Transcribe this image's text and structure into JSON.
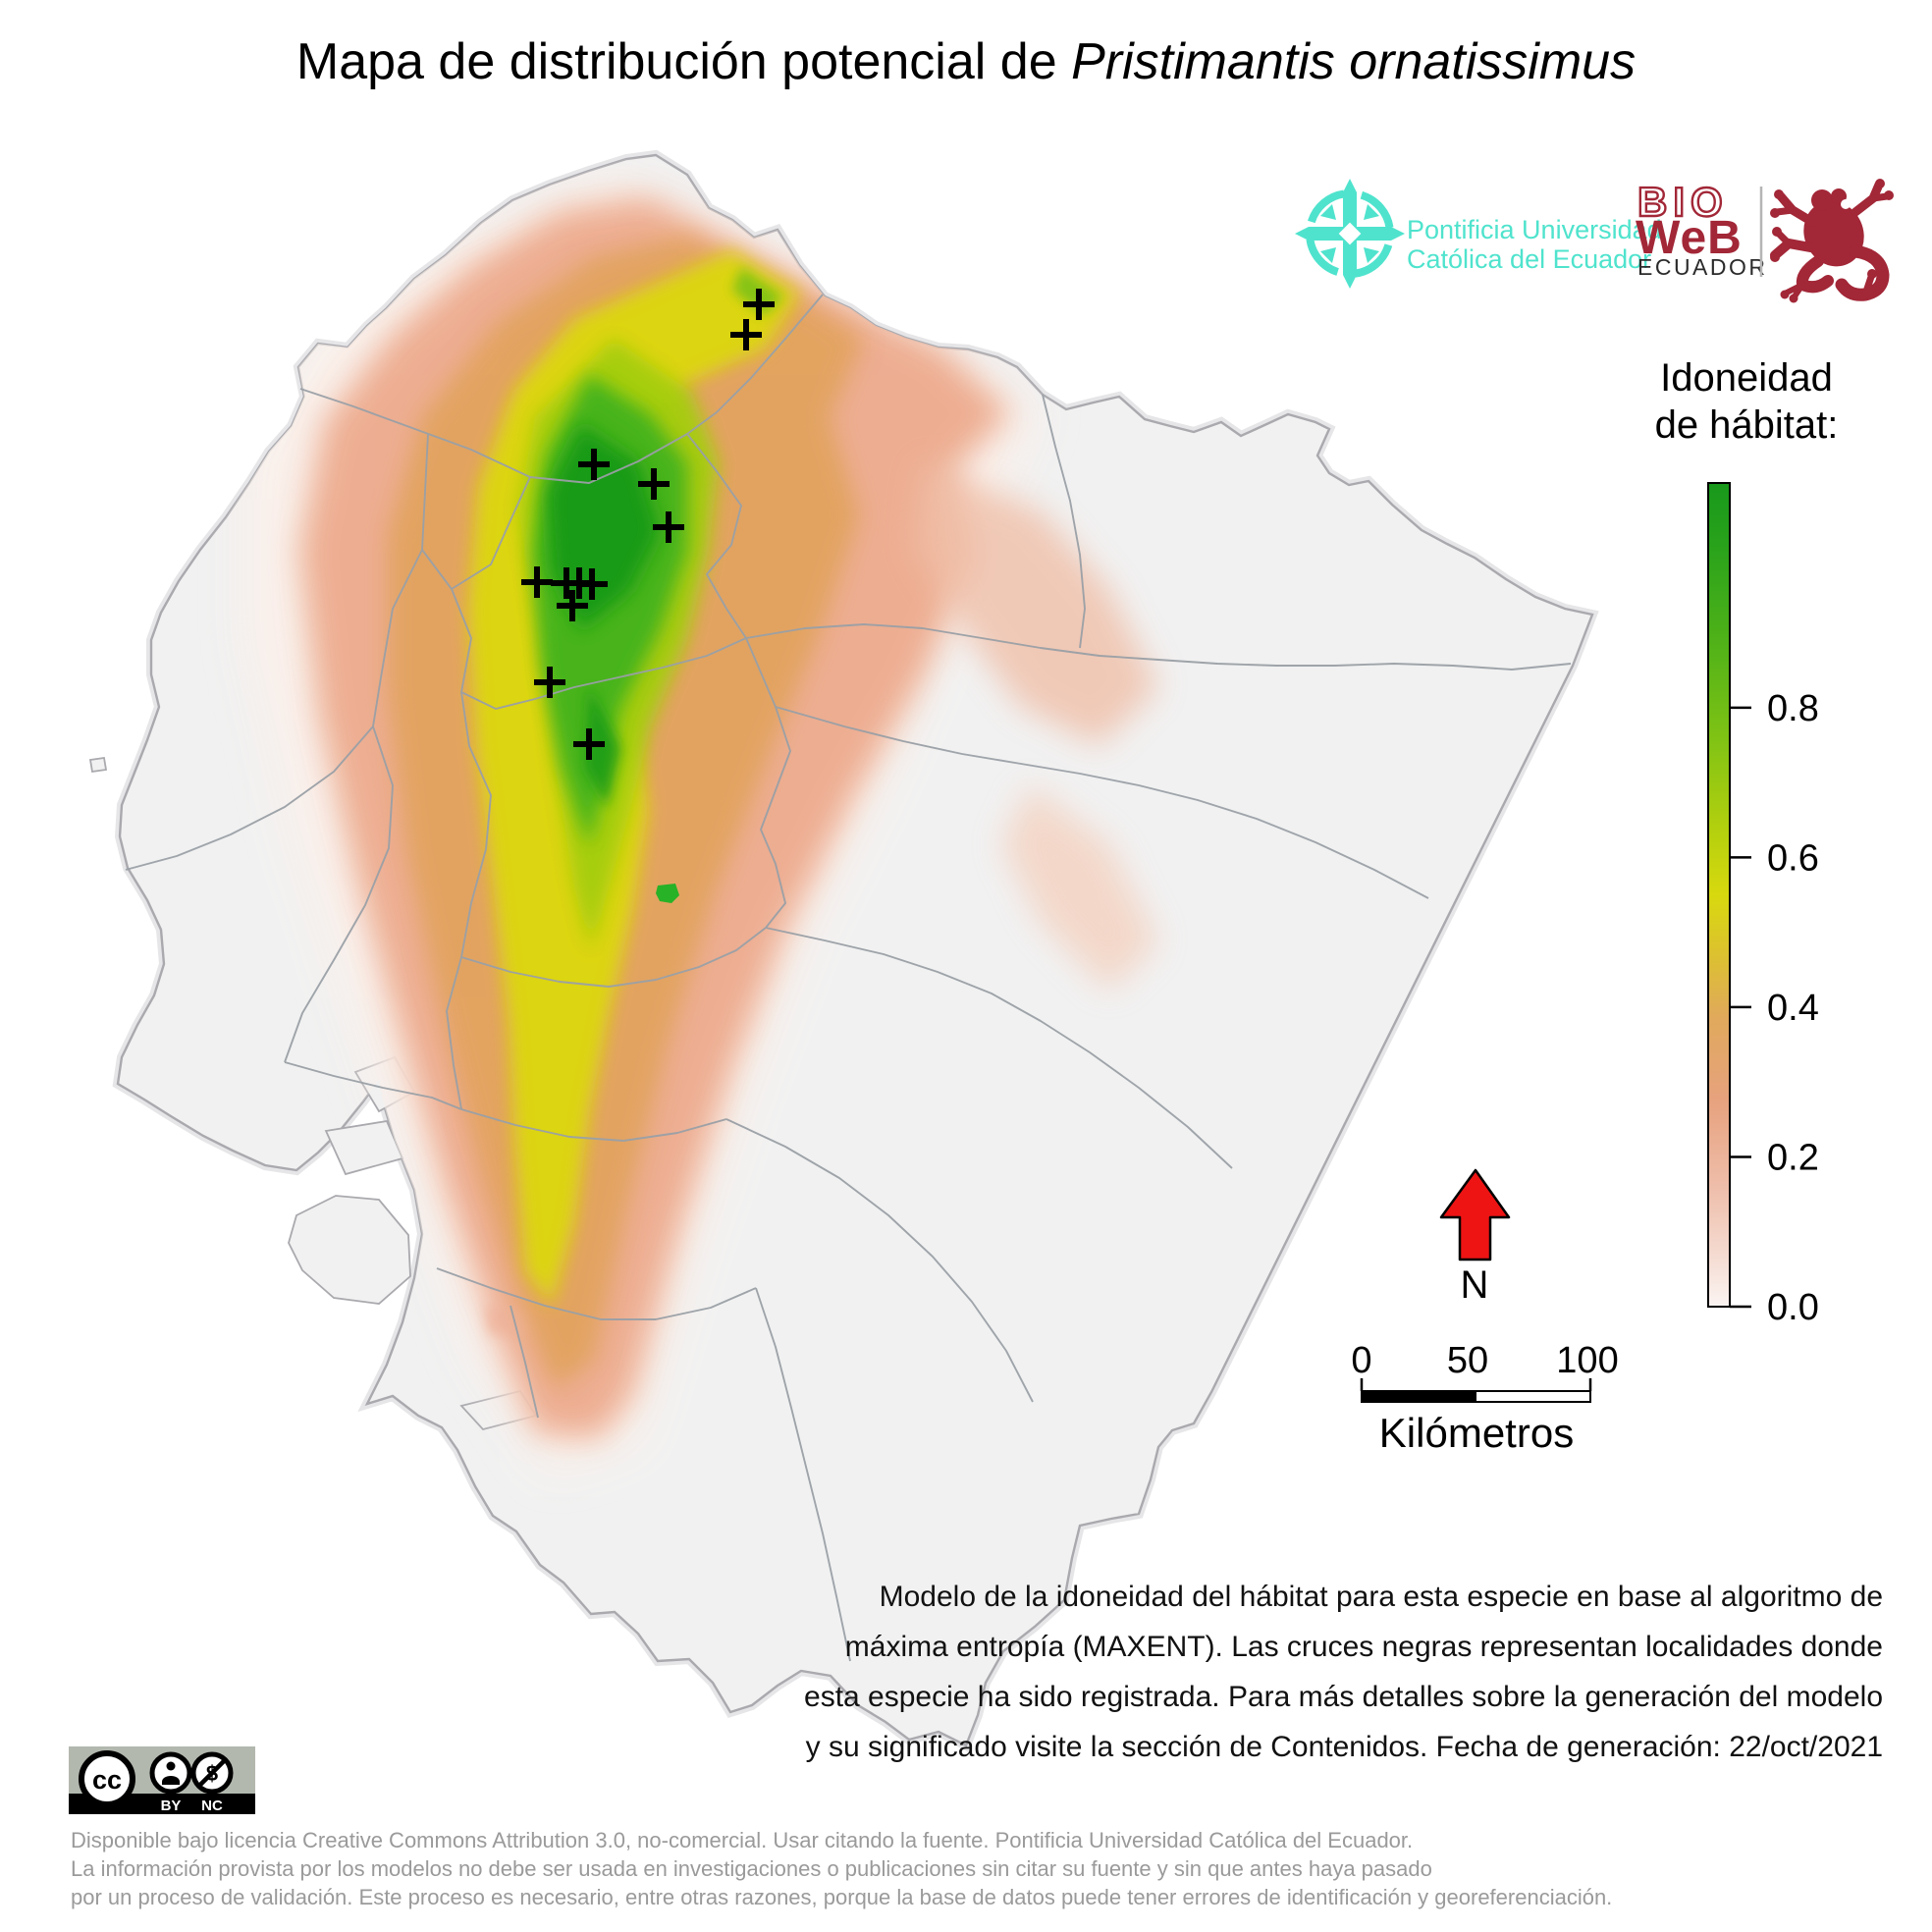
{
  "title": {
    "prefix": "Mapa de distribución potencial de",
    "species": "Pristimantis ornatissimus"
  },
  "logos": {
    "puce": {
      "line1": "Pontificia Universidad",
      "line2": "Católica del Ecuador",
      "color": "#4fe3cd"
    },
    "bioweb": {
      "bio": "BIO",
      "web": "WeB",
      "country": "ECUADOR",
      "color": "#a22737"
    }
  },
  "legend": {
    "title_line1": "Idoneidad",
    "title_line2": "de hábitat:",
    "ticks": [
      {
        "value": 0.8,
        "label": "0.8"
      },
      {
        "value": 0.6,
        "label": "0.6"
      },
      {
        "value": 0.4,
        "label": "0.4"
      },
      {
        "value": 0.2,
        "label": "0.2"
      },
      {
        "value": 0.0,
        "label": "0.0"
      }
    ],
    "colors": {
      "high": "#18981b",
      "mid_green": "#52b318",
      "yellow": "#d8d90e",
      "orange": "#e0a95c",
      "salmon": "#e7a27e",
      "low": "#fbf4f2"
    }
  },
  "north_arrow": {
    "label": "N",
    "color": "#ee1414"
  },
  "scale_bar": {
    "tick_labels": [
      "0",
      "50",
      "100"
    ],
    "unit_label": "Kilómetros"
  },
  "caption": {
    "lines": [
      "Modelo de la idoneidad del hábitat para esta especie en base al algoritmo de",
      "máxima entropía (MAXENT). Las cruces negras representan localidades donde",
      "esta especie ha sido registrada. Para más detalles sobre la generación del modelo",
      "y su significado visite la sección de Contenidos. Fecha de generación: 22/oct/2021"
    ]
  },
  "license": {
    "cc_label": "cc",
    "by_label": "BY",
    "nc_label": "NC",
    "footer_lines": [
      "Disponible bajo licencia Creative Commons Attribution 3.0, no-comercial. Usar citando la fuente. Pontificia Universidad Católica del Ecuador.",
      "La información provista por los modelos no debe ser usada en investigaciones o publicaciones sin citar su fuente y sin que antes haya pasado",
      "por un proceso de validación. Este proceso es necesario, entre otras razones, porque la base de datos puede tener errores de identificación y georeferenciación."
    ]
  },
  "map": {
    "occurrences": [
      [
        773,
        310
      ],
      [
        760,
        341
      ],
      [
        605,
        473
      ],
      [
        666,
        493
      ],
      [
        681,
        537
      ],
      [
        547,
        593
      ],
      [
        577,
        594
      ],
      [
        590,
        594
      ],
      [
        603,
        595
      ],
      [
        583,
        617
      ],
      [
        560,
        695
      ],
      [
        600,
        758
      ]
    ],
    "isolated_patch": [
      679,
      910
    ],
    "colors": {
      "land": "#f1f1f1",
      "country_border": "#a9a9ae",
      "province_border": "#9aa0a6",
      "cross": "#000000"
    }
  }
}
